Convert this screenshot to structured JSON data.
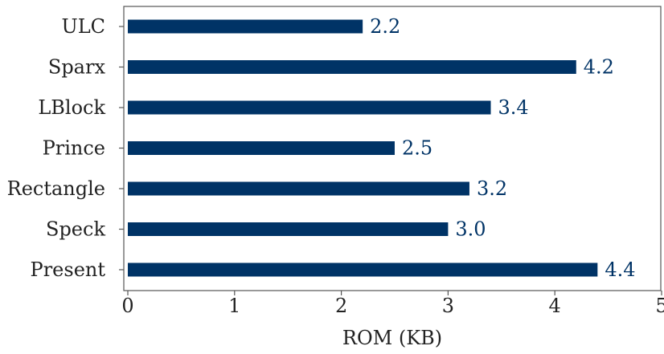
{
  "chart_data": {
    "type": "bar",
    "orientation": "horizontal",
    "categories": [
      "ULC",
      "Sparx",
      "LBlock",
      "Prince",
      "Rectangle",
      "Speck",
      "Present"
    ],
    "values": [
      2.2,
      4.2,
      3.4,
      2.5,
      3.2,
      3.0,
      4.4
    ],
    "value_labels": [
      "2.2",
      "4.2",
      "3.4",
      "2.5",
      "3.2",
      "3.0",
      "4.4"
    ],
    "xlabel": "ROM (KB)",
    "ylabel": "",
    "xlim": [
      0,
      5
    ],
    "x_ticks": [
      0,
      1,
      2,
      3,
      4,
      5
    ],
    "x_tick_labels": [
      "0",
      "1",
      "2",
      "3",
      "4",
      "5"
    ],
    "grid": false,
    "colors": {
      "bar": "#003366",
      "value_label": "#003366"
    }
  }
}
